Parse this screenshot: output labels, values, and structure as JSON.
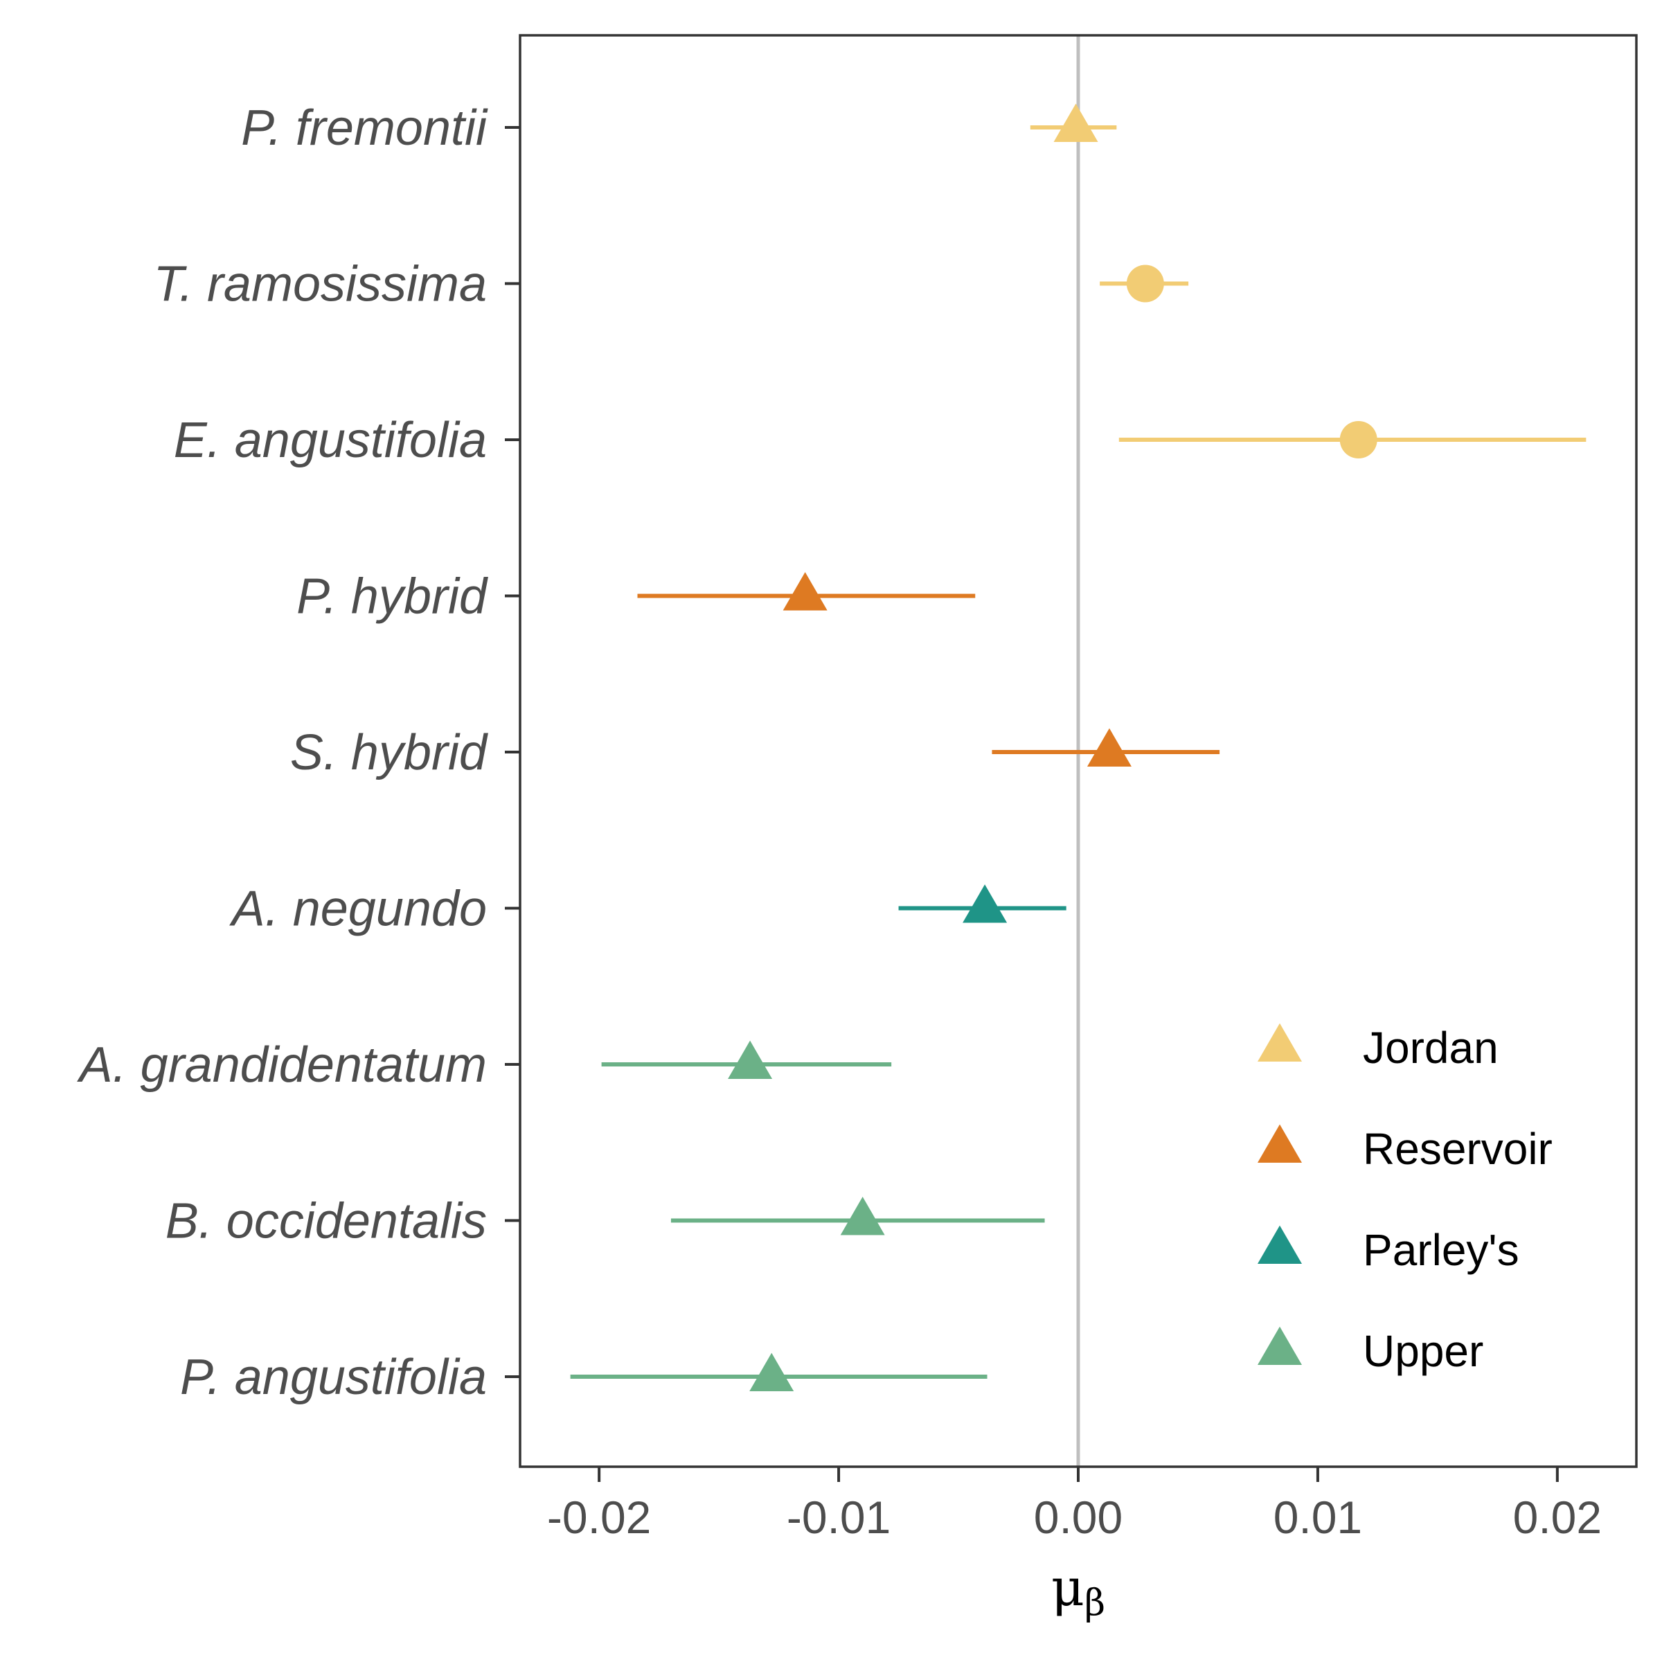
{
  "chart_data": {
    "type": "scatter",
    "subtype": "forest-plot-point-range",
    "title": "",
    "xlabel": "μβ",
    "xlabel_main": "μ",
    "xlabel_sub": "β",
    "ylabel": "",
    "xlim": [
      -0.0233,
      0.0233
    ],
    "xticks": [
      -0.02,
      -0.01,
      0.0,
      0.01,
      0.02
    ],
    "xtick_labels": [
      "-0.02",
      "-0.01",
      "0.00",
      "0.01",
      "0.02"
    ],
    "reference_line": {
      "x": 0.0,
      "color": "#bfbfbf"
    },
    "grid": false,
    "legend": {
      "placement": "inside-bottom-right",
      "entries": [
        {
          "label": "Jordan",
          "color": "#f2cc74",
          "shape": "triangle"
        },
        {
          "label": "Reservoir",
          "color": "#de7a22",
          "shape": "triangle"
        },
        {
          "label": "Parley's",
          "color": "#1f9487",
          "shape": "triangle"
        },
        {
          "label": "Upper",
          "color": "#6bb187",
          "shape": "triangle"
        }
      ]
    },
    "categories": [
      "P. fremontii",
      "T. ramosissima",
      "E. angustifolia",
      "P. hybrid",
      "S. hybrid",
      "A. negundo",
      "A. grandidentatum",
      "B. occidentalis",
      "P. angustifolia"
    ],
    "points": [
      {
        "species": "P. fremontii",
        "group": "Jordan",
        "estimate": -0.0001,
        "lower": -0.002,
        "upper": 0.0016,
        "shape": "triangle"
      },
      {
        "species": "T. ramosissima",
        "group": "Jordan",
        "estimate": 0.0028,
        "lower": 0.0009,
        "upper": 0.0046,
        "shape": "circle"
      },
      {
        "species": "E. angustifolia",
        "group": "Jordan",
        "estimate": 0.0117,
        "lower": 0.0017,
        "upper": 0.0212,
        "shape": "circle"
      },
      {
        "species": "P. hybrid",
        "group": "Reservoir",
        "estimate": -0.0114,
        "lower": -0.0184,
        "upper": -0.0043,
        "shape": "triangle"
      },
      {
        "species": "S. hybrid",
        "group": "Reservoir",
        "estimate": 0.0013,
        "lower": -0.0036,
        "upper": 0.0059,
        "shape": "triangle"
      },
      {
        "species": "A. negundo",
        "group": "Parley's",
        "estimate": -0.0039,
        "lower": -0.0075,
        "upper": -0.0005,
        "shape": "triangle"
      },
      {
        "species": "A. grandidentatum",
        "group": "Upper",
        "estimate": -0.0137,
        "lower": -0.0199,
        "upper": -0.0078,
        "shape": "triangle"
      },
      {
        "species": "B. occidentalis",
        "group": "Upper",
        "estimate": -0.009,
        "lower": -0.017,
        "upper": -0.0014,
        "shape": "triangle"
      },
      {
        "species": "P. angustifolia",
        "group": "Upper",
        "estimate": -0.0128,
        "lower": -0.0212,
        "upper": -0.0038,
        "shape": "triangle"
      }
    ]
  }
}
